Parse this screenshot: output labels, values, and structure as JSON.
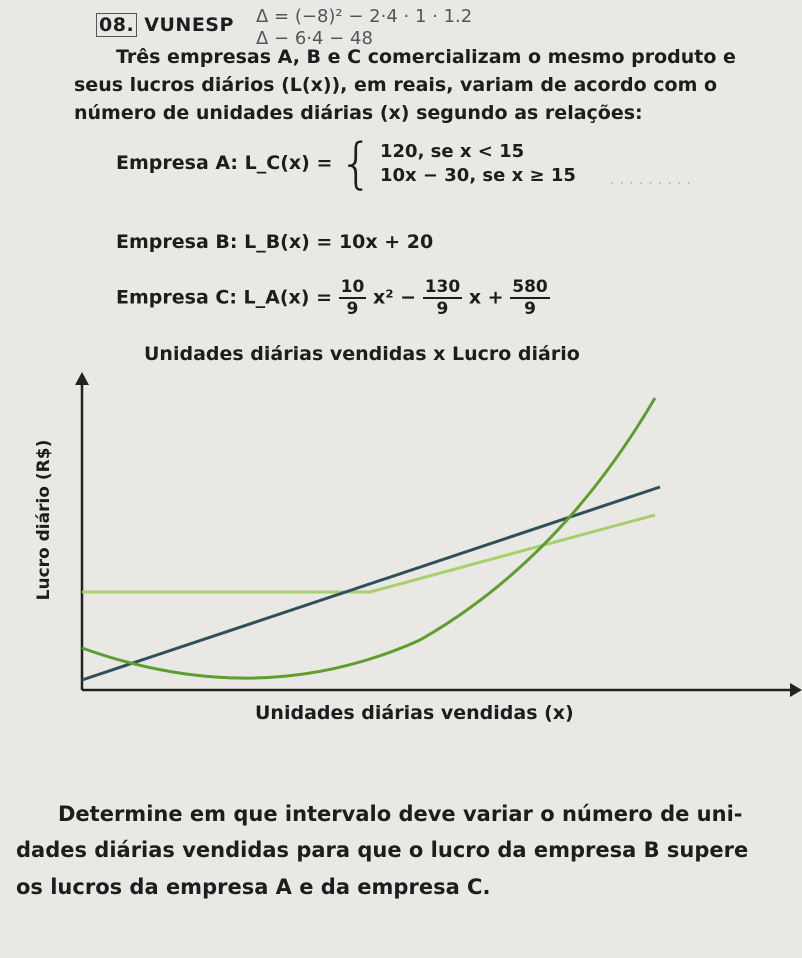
{
  "question": {
    "number": "08.",
    "source": "VUNESP",
    "intro_lines": [
      "Três empresas A, B e C comercializam o mesmo produto e",
      "seus lucros diários (L(x)), em reais, variam de acordo com o",
      "número de unidades diárias (x) segundo as relações:"
    ],
    "empresa_a_label": "Empresa A:",
    "empresa_a_func": "L_C(x) =",
    "empresa_a_case1": "120, se x < 15",
    "empresa_a_case2": "10x − 30, se x ≥ 15",
    "empresa_b_label": "Empresa B:",
    "empresa_b_func": "L_B(x) = 10x + 20",
    "empresa_c_label": "Empresa C:",
    "empresa_c_func": "L_A(x) =",
    "empresa_c_coef1_num": "10",
    "empresa_c_coef1_den": "9",
    "empresa_c_term1": "x² −",
    "empresa_c_coef2_num": "130",
    "empresa_c_coef2_den": "9",
    "empresa_c_term2": "x +",
    "empresa_c_coef3_num": "580",
    "empresa_c_coef3_den": "9",
    "prompt_lines": [
      "Determine em que intervalo deve variar o número de uni-",
      "dades diárias vendidas para que o lucro da empresa B supere",
      "os lucros da empresa A e da empresa C."
    ]
  },
  "handwriting": {
    "line1": "Δ = (−8)² − 2·4 · 1 · 1.2",
    "line2": "Δ − 6·4 − 48"
  },
  "chart_data": {
    "type": "line",
    "title": "Unidades diárias vendidas x Lucro diário",
    "xlabel": "Unidades diárias vendidas (x)",
    "ylabel": "Lucro diário (R$)",
    "colors": {
      "axis": "#222222",
      "line_b": "#2f4f5c",
      "parabola": "#5d9e2e",
      "line_a": "#a8d06a"
    }
  }
}
